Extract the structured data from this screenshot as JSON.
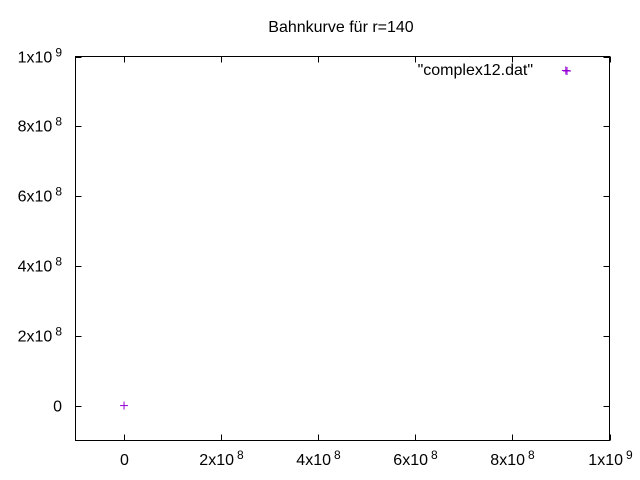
{
  "chart_data": {
    "type": "scatter",
    "title": "Bahnkurve für r=140",
    "xlabel": "",
    "ylabel": "",
    "xlim": [
      -100000000,
      1000000000
    ],
    "ylim": [
      -100000000,
      1000000000
    ],
    "grid": false,
    "legend_position": "top-right",
    "x_ticks": [
      {
        "value": 0,
        "mantissa": "0",
        "exp": ""
      },
      {
        "value": 200000000,
        "mantissa": "2x10",
        "exp": "8"
      },
      {
        "value": 400000000,
        "mantissa": "4x10",
        "exp": "8"
      },
      {
        "value": 600000000,
        "mantissa": "6x10",
        "exp": "8"
      },
      {
        "value": 800000000,
        "mantissa": "8x10",
        "exp": "8"
      },
      {
        "value": 1000000000,
        "mantissa": "1x10",
        "exp": "9"
      }
    ],
    "y_ticks": [
      {
        "value": 0,
        "mantissa": "0",
        "exp": ""
      },
      {
        "value": 200000000,
        "mantissa": "2x10",
        "exp": "8"
      },
      {
        "value": 400000000,
        "mantissa": "4x10",
        "exp": "8"
      },
      {
        "value": 600000000,
        "mantissa": "6x10",
        "exp": "8"
      },
      {
        "value": 800000000,
        "mantissa": "8x10",
        "exp": "8"
      },
      {
        "value": 1000000000,
        "mantissa": "1x10",
        "exp": "9"
      }
    ],
    "series": [
      {
        "name": "\"complex12.dat\"",
        "color": "#9400d3",
        "marker": "plus",
        "points": [
          {
            "x": 0,
            "y": 0
          },
          {
            "x": 910000000,
            "y": 960000000
          }
        ]
      }
    ]
  }
}
